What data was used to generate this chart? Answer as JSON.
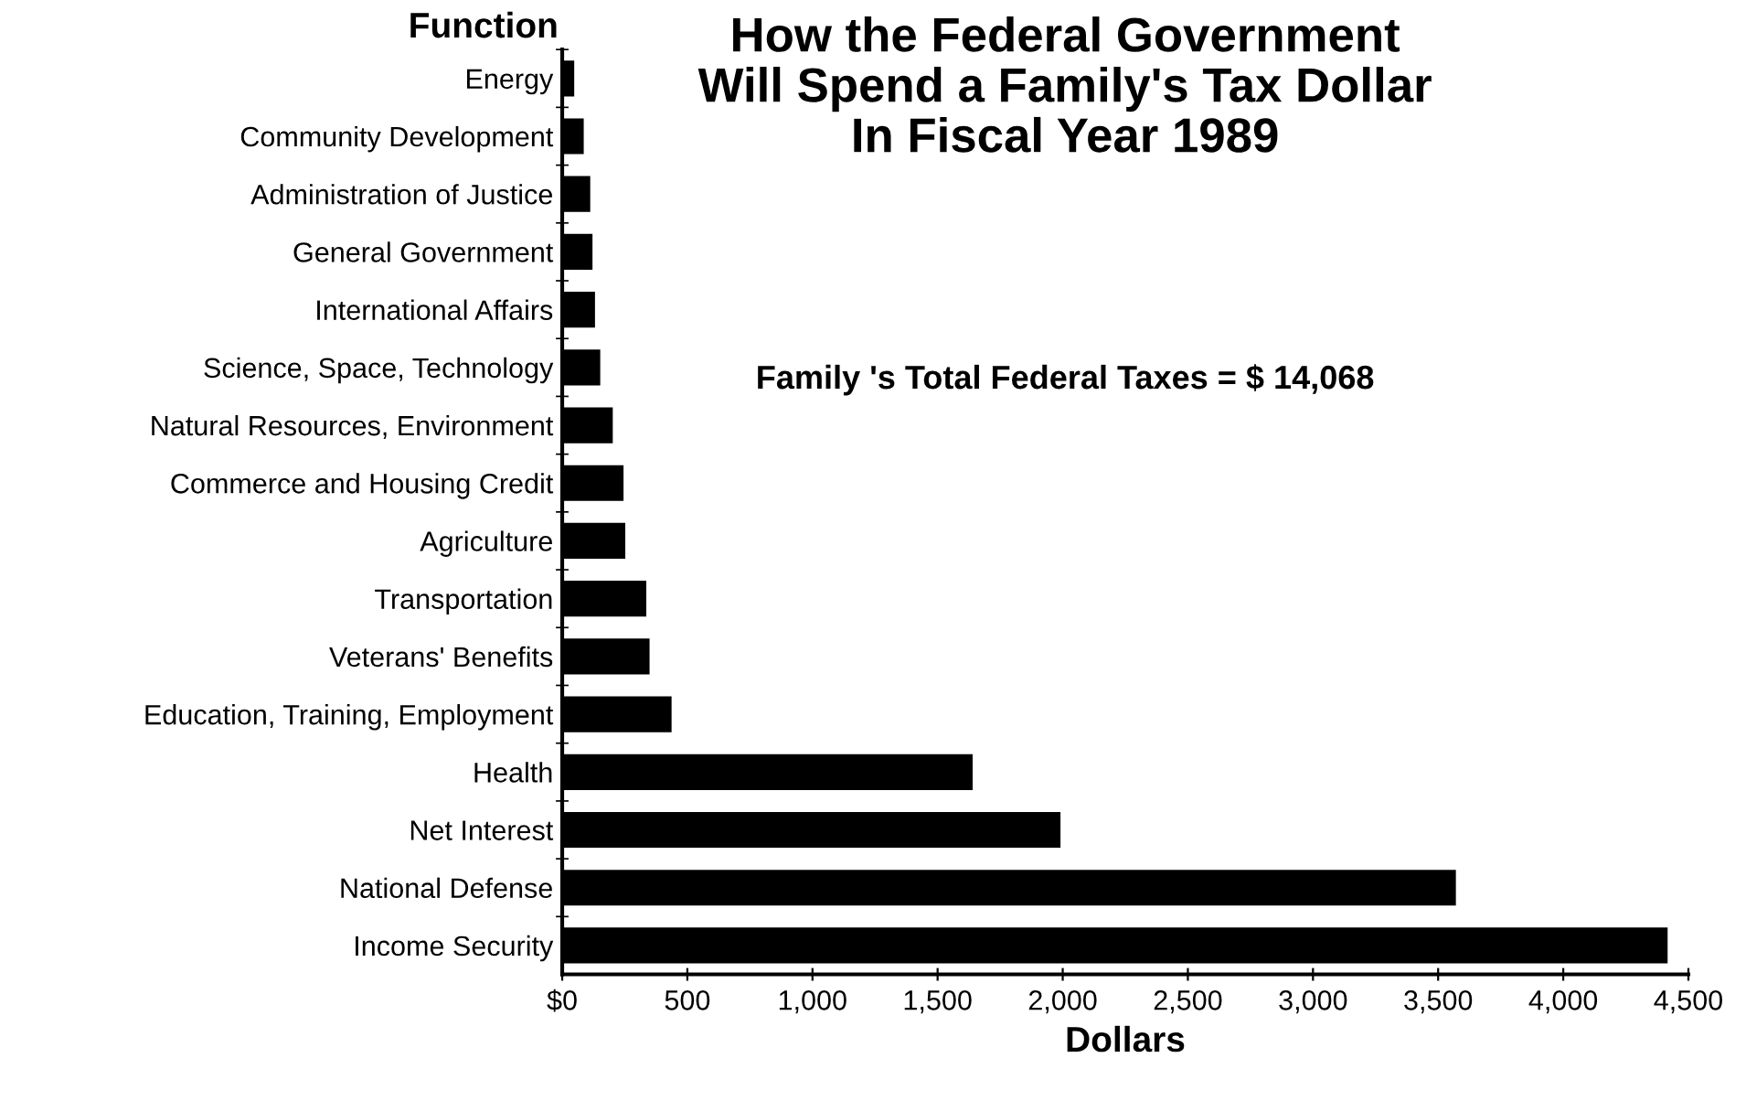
{
  "chart_data": {
    "type": "bar",
    "orientation": "horizontal",
    "title": "How the Federal Government\nWill Spend a Family's Tax Dollar\nIn Fiscal Year 1989",
    "ylabel": "Function",
    "xlabel": "Dollars",
    "annotations": [
      "Family 's Total Federal Taxes = $ 14,068"
    ],
    "categories": [
      "Energy",
      "Community Development",
      "Administration of Justice",
      "General Government",
      "International Affairs",
      "Science, Space, Technology",
      "Natural Resources, Environment",
      "Commerce and Housing Credit",
      "Agriculture",
      "Transportation",
      "Veterans' Benefits",
      "Education, Training, Employment",
      "Health",
      "Net Interest",
      "National Defense",
      "Income Security"
    ],
    "values": [
      48,
      86,
      112,
      121,
      131,
      152,
      202,
      245,
      252,
      336,
      349,
      437,
      1640,
      1991,
      3571,
      4417
    ],
    "color": "#000000",
    "xlim": [
      0,
      4500
    ],
    "xticks": [
      {
        "value": 0,
        "label": "$0"
      },
      500,
      {
        "value": 1000,
        "label": "1,000"
      },
      {
        "value": 1500,
        "label": "1,500"
      },
      {
        "value": 2000,
        "label": "2,000"
      },
      {
        "value": 2500,
        "label": "2,500"
      },
      {
        "value": 3000,
        "label": "3,000"
      },
      {
        "value": 3500,
        "label": "3,500"
      },
      {
        "value": 4000,
        "label": "4,000"
      },
      {
        "value": 4500,
        "label": "4,500"
      }
    ],
    "grid": false,
    "legend": false
  }
}
